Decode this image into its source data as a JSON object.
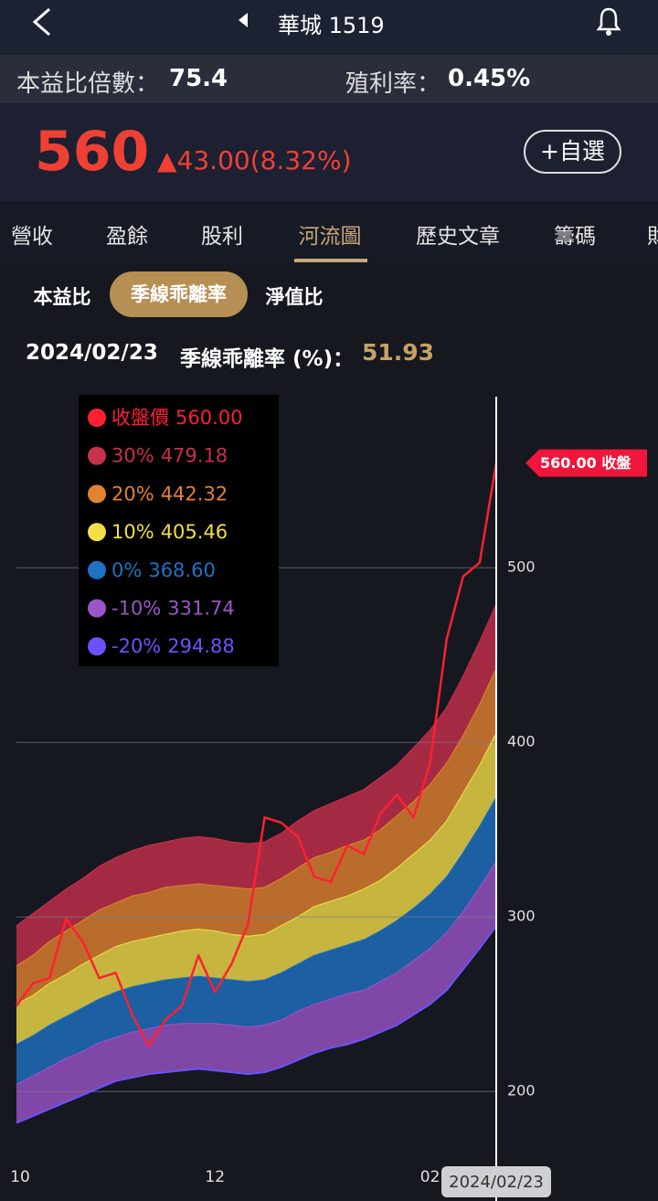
{
  "header": {
    "title": "華城 1519"
  },
  "stats": {
    "pe_label": "本益比倍數：",
    "pe": "75.4",
    "yield_label": "殖利率：",
    "yield": "0.45%"
  },
  "quote": {
    "price": "560",
    "change": "▲43.00(8.32%)",
    "watch_button": "+自選"
  },
  "tabs": [
    "營收",
    "盈餘",
    "股利",
    "河流圖",
    "歷史文章",
    "籌碼",
    "財"
  ],
  "subtabs": [
    "本益比",
    "季線乖離率",
    "淨值比"
  ],
  "info": {
    "date": "2024/02/23",
    "label": "季線乖離率 (%)：",
    "value": "51.93"
  },
  "chart_data": {
    "type": "river",
    "categories": [
      "10",
      null,
      null,
      null,
      null,
      null,
      null,
      null,
      null,
      null,
      null,
      null,
      "12",
      null,
      null,
      null,
      null,
      null,
      null,
      null,
      null,
      null,
      null,
      null,
      null,
      "02",
      null,
      null,
      null,
      null
    ],
    "ylim": [
      160,
      598
    ],
    "yticks": [
      200,
      300,
      400,
      500
    ],
    "grid": true,
    "price_tag": "560.00 收盤",
    "series": [
      {
        "name": "收盤價",
        "color": "#ff2030",
        "last_label": "560.00",
        "values": [
          249,
          262,
          265,
          299,
          286,
          265,
          268,
          244,
          226,
          241,
          249,
          278,
          257,
          273,
          296,
          357,
          354,
          346,
          323,
          320,
          341,
          336,
          359,
          370,
          357,
          388,
          459,
          495,
          503,
          560
        ]
      },
      {
        "name": "30%",
        "color": "#c8304c",
        "last_label": "479.18",
        "values": [
          295,
          302,
          309,
          316,
          322,
          329,
          334,
          338,
          341,
          343,
          345,
          346,
          345,
          343,
          342,
          343,
          348,
          355,
          361,
          365,
          369,
          373,
          380,
          387,
          397,
          407,
          420,
          438,
          458,
          479.18
        ]
      },
      {
        "name": "20%",
        "color": "#e3822f",
        "last_label": "442.32",
        "values": [
          272,
          278,
          286,
          292,
          298,
          304,
          308,
          312,
          314,
          317,
          318,
          319,
          318,
          317,
          316,
          317,
          322,
          328,
          334,
          337,
          341,
          344,
          350,
          358,
          366,
          376,
          388,
          404,
          422,
          442.32
        ]
      },
      {
        "name": "10%",
        "color": "#f2df48",
        "last_label": "405.46",
        "values": [
          250,
          255,
          262,
          267,
          273,
          278,
          283,
          286,
          288,
          290,
          292,
          293,
          292,
          290,
          289,
          290,
          295,
          300,
          306,
          309,
          312,
          316,
          321,
          328,
          336,
          344,
          355,
          371,
          387,
          405.46
        ]
      },
      {
        "name": "0%",
        "color": "#1e72c4",
        "last_label": "368.60",
        "values": [
          227,
          232,
          238,
          243,
          248,
          253,
          257,
          260,
          262,
          264,
          265,
          266,
          265,
          264,
          263,
          264,
          268,
          273,
          278,
          281,
          284,
          287,
          292,
          298,
          305,
          313,
          323,
          337,
          352,
          368.6
        ]
      },
      {
        "name": "-10%",
        "color": "#9b55c8",
        "last_label": "331.74",
        "values": [
          204,
          209,
          214,
          219,
          223,
          228,
          231,
          234,
          236,
          238,
          239,
          239,
          239,
          238,
          237,
          238,
          241,
          246,
          250,
          253,
          256,
          258,
          263,
          268,
          275,
          282,
          291,
          303,
          317,
          331.74
        ]
      },
      {
        "name": "-20%",
        "color": "#6e50ff",
        "last_label": "294.88",
        "values": [
          182,
          186,
          190,
          194,
          198,
          202,
          206,
          208,
          210,
          211,
          212,
          213,
          212,
          211,
          210,
          211,
          214,
          218,
          222,
          225,
          227,
          230,
          234,
          238,
          244,
          250,
          258,
          270,
          282,
          294.88
        ]
      }
    ]
  }
}
